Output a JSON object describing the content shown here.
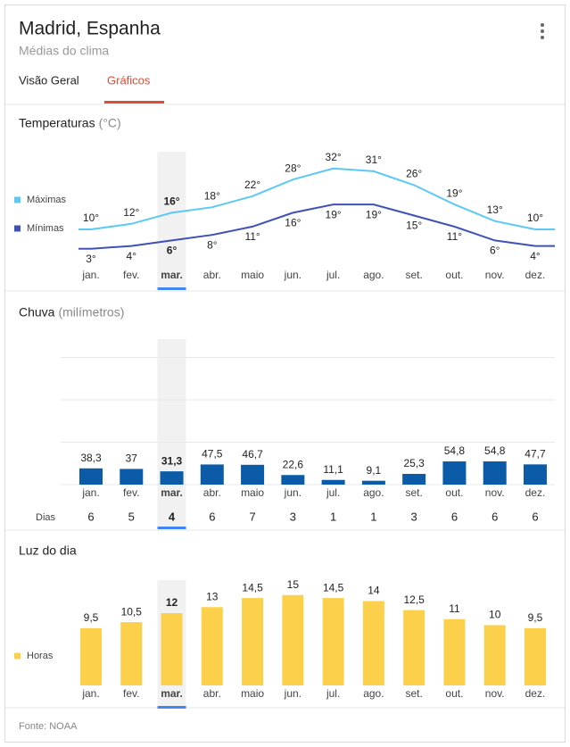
{
  "header": {
    "title": "Madrid, Espanha",
    "subtitle": "Médias do clima"
  },
  "tabs": [
    "Visão Geral",
    "Gráficos"
  ],
  "chart_data": [
    {
      "type": "line",
      "title": "Temperaturas",
      "unit": "(°C)",
      "categories": [
        "jan.",
        "fev.",
        "mar.",
        "abr.",
        "maio",
        "jun.",
        "jul.",
        "ago.",
        "set.",
        "out.",
        "nov.",
        "dez."
      ],
      "series": [
        {
          "name": "Máximas",
          "color": "#5bc8f5",
          "values": [
            10,
            12,
            16,
            18,
            22,
            28,
            32,
            31,
            26,
            19,
            13,
            10
          ],
          "value_labels": [
            "10°",
            "12°",
            "16°",
            "18°",
            "22°",
            "28°",
            "32°",
            "31°",
            "26°",
            "19°",
            "13°",
            "10°"
          ]
        },
        {
          "name": "Mínimas",
          "color": "#3f51b5",
          "values": [
            3,
            4,
            6,
            8,
            11,
            16,
            19,
            19,
            15,
            11,
            6,
            4
          ],
          "value_labels": [
            "3°",
            "4°",
            "6°",
            "8°",
            "11°",
            "16°",
            "19°",
            "19°",
            "15°",
            "11°",
            "6°",
            "4°"
          ]
        }
      ],
      "ylim": [
        0,
        40
      ]
    },
    {
      "type": "bar",
      "title": "Chuva",
      "unit": "(milímetros)",
      "categories": [
        "jan.",
        "fev.",
        "mar.",
        "abr.",
        "maio",
        "jun.",
        "jul.",
        "ago.",
        "set.",
        "out.",
        "nov.",
        "dez."
      ],
      "values": [
        38.3,
        37,
        31.3,
        47.5,
        46.7,
        22.6,
        11.1,
        9.1,
        25.3,
        54.8,
        54.8,
        47.7
      ],
      "value_labels": [
        "38,3",
        "37",
        "31,3",
        "47,5",
        "46,7",
        "22,6",
        "11,1",
        "9,1",
        "25,3",
        "54,8",
        "54,8",
        "47,7"
      ],
      "color": "#0b5ba8",
      "ylim": [
        0,
        300
      ],
      "ygrid": [
        0,
        100,
        200,
        300
      ],
      "days": {
        "label": "Dias",
        "values": [
          6,
          5,
          4,
          6,
          7,
          3,
          1,
          1,
          3,
          6,
          6,
          6
        ]
      }
    },
    {
      "type": "bar",
      "title": "Luz do dia",
      "categories": [
        "jan.",
        "fev.",
        "mar.",
        "abr.",
        "maio",
        "jun.",
        "jul.",
        "ago.",
        "set.",
        "out.",
        "nov.",
        "dez."
      ],
      "series": [
        {
          "name": "Horas",
          "color": "#fdd04b",
          "values": [
            9.5,
            10.5,
            12,
            13,
            14.5,
            15,
            14.5,
            14,
            12.5,
            11,
            10,
            9.5
          ],
          "value_labels": [
            "9,5",
            "10,5",
            "12",
            "13",
            "14,5",
            "15",
            "14,5",
            "14",
            "12,5",
            "11",
            "10",
            "9,5"
          ]
        }
      ],
      "ylim": [
        0,
        16
      ]
    }
  ],
  "footer": "Fonte: NOAA"
}
